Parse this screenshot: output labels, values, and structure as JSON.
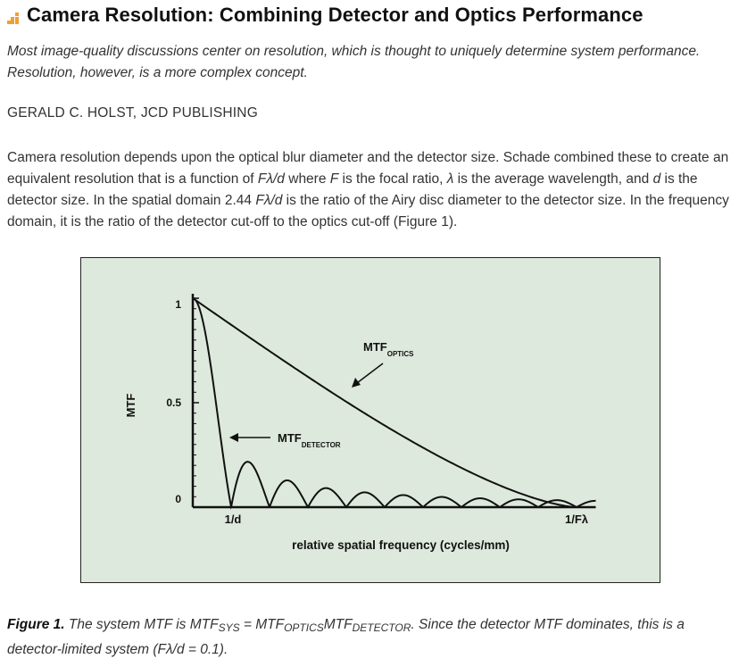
{
  "article": {
    "title": "Camera Resolution: Combining Detector and Optics Performance",
    "subtitle": "Most image-quality discussions center on resolution, which is thought to uniquely determine system performance. Resolution, however, is a more complex concept.",
    "byline": "GERALD C. HOLST, JCD PUBLISHING",
    "body": {
      "p1": "Camera resolution depends upon the optical blur diameter and the detector size. Schade combined these to create an equivalent resolution that is a function of ",
      "f_lambda_d_1": "Fλ/d",
      "p2": " where ",
      "F": "F",
      "p3": " is the focal ratio, ",
      "lambda": "λ",
      "p4": " is the average wavelength, and ",
      "d": "d",
      "p5": " is the detector size. In the spatial domain 2.44 ",
      "f_lambda_d_2": "Fλ/d",
      "p6": " is the ratio of the Airy disc diameter to the detector size. In the frequency domain, it is the ratio of the detector cut-off to the optics cut-off (Figure 1)."
    }
  },
  "figure": {
    "background": "#dde9dc",
    "chart_data": {
      "type": "line",
      "title": "",
      "xlabel": "relative spatial frequency (cycles/mm)",
      "ylabel": "MTF",
      "ylim": [
        0,
        1
      ],
      "xlim": [
        0,
        1.05
      ],
      "y_ticks": [
        "0",
        "0.5",
        "1"
      ],
      "x_ticks": [
        "1/d",
        "1/Fλ"
      ],
      "x_tick_values": [
        0.1,
        1.0
      ],
      "series": [
        {
          "name": "MTF_OPTICS",
          "label_main": "MTF",
          "label_sub": "OPTICS",
          "function": "diffraction-limited circular aperture MTF with cutoff at 1/Fλ",
          "cutoff": 1.0
        },
        {
          "name": "MTF_DETECTOR",
          "label_main": "MTF",
          "label_sub": "DETECTOR",
          "function": "|sinc(x/(1/d))|",
          "zeros_at_multiples_of": 0.1
        }
      ]
    }
  },
  "caption": {
    "lead": "Figure 1.",
    "t1": " The system MTF is MTF",
    "sys": "SYS",
    "t2": " = MTF",
    "optics": "OPTICS",
    "t3": "MTF",
    "detector": "DETECTOR",
    "t4": ". Since the detector MTF dominates, this is a detector-limited system (",
    "ratio": "Fλ/d",
    "t5": " = 0.1)."
  }
}
